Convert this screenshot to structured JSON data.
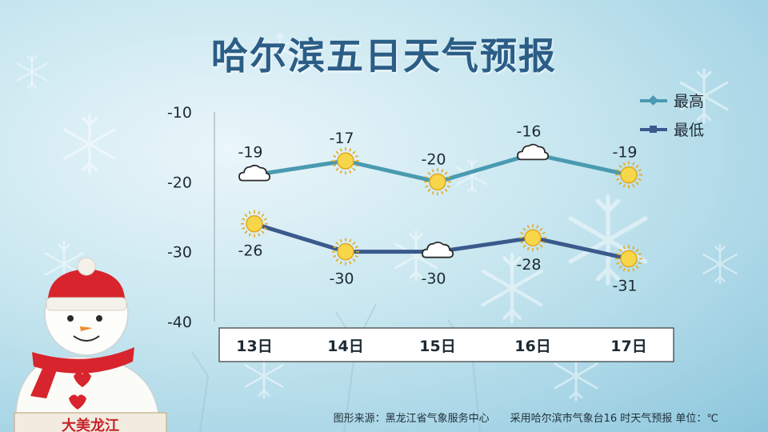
{
  "title": "哈尔滨五日天气预报",
  "source": {
    "left": "图形来源：黑龙江省气象服务中心",
    "right": "采用哈尔滨市气象台16 时天气预报 单位：℃"
  },
  "badge_text": "大美龙江",
  "chart_data": {
    "type": "line",
    "title": "哈尔滨五日天气预报",
    "categories": [
      "13日",
      "14日",
      "15日",
      "16日",
      "17日"
    ],
    "ylim": [
      -40,
      -10
    ],
    "yticks": [
      -10,
      -20,
      -30,
      -40
    ],
    "ytick_labels": [
      "-10",
      "-20",
      "-30",
      "-40"
    ],
    "grid": false,
    "legend_position": "top-right",
    "series": [
      {
        "name": "最高",
        "values": [
          -19,
          -17,
          -20,
          -16,
          -19
        ],
        "labels": [
          "-19",
          "-17",
          "-20",
          "-16",
          "-19"
        ],
        "icons": [
          "cloud-icon",
          "sun-icon",
          "sun-icon",
          "cloud-icon",
          "sun-icon"
        ],
        "color": "#4a9ab0"
      },
      {
        "name": "最低",
        "values": [
          -26,
          -30,
          -30,
          -28,
          -31
        ],
        "labels": [
          "-26",
          "-30",
          "-30",
          "-28",
          "-31"
        ],
        "icons": [
          "sun-icon",
          "sun-icon",
          "cloud-icon",
          "sun-icon",
          "sun-icon"
        ],
        "color": "#3a5a8c"
      }
    ]
  }
}
